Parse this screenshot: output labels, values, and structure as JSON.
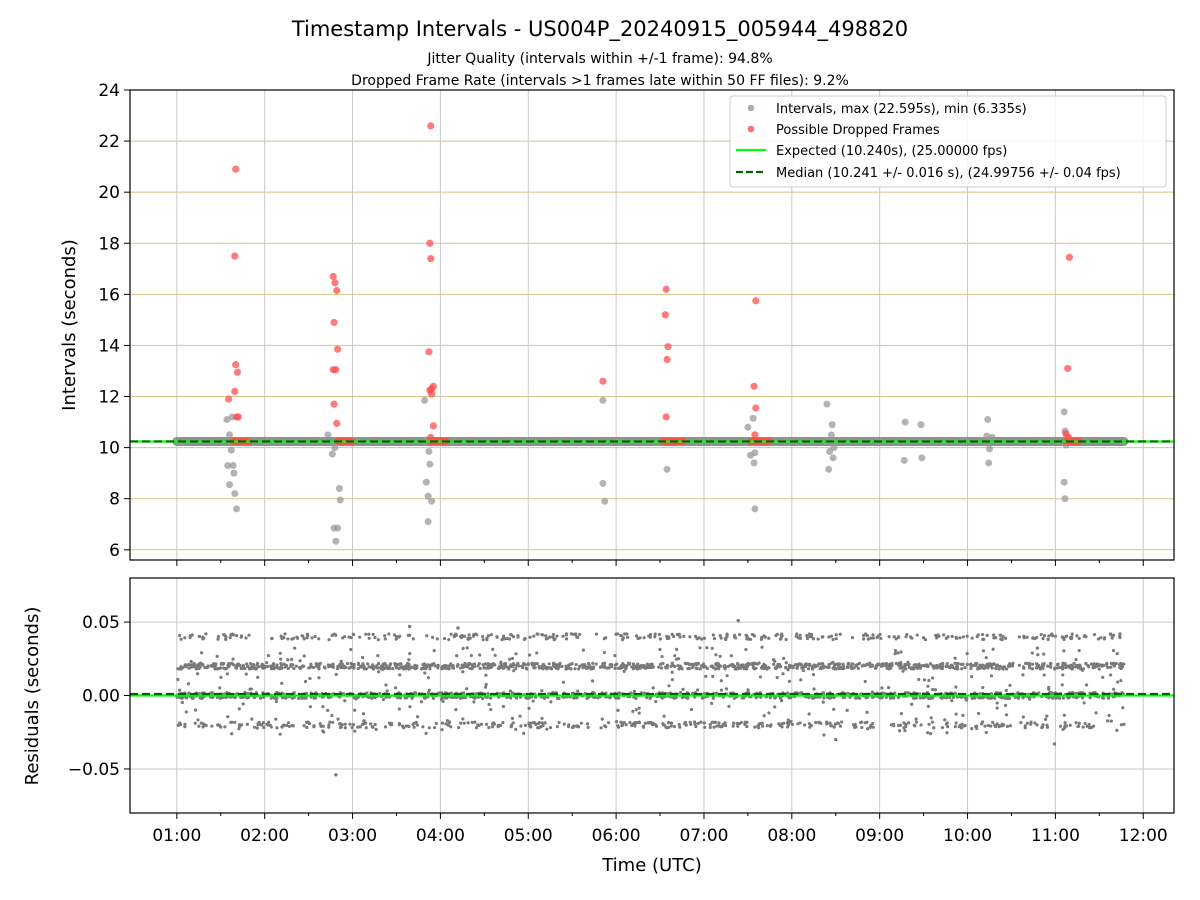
{
  "figure": {
    "title": "Timestamp Intervals - US004P_20240915_005944_498820",
    "subtitle_1": "Jitter Quality (intervals within +/-1 frame): 94.8%",
    "subtitle_2": "Dropped Frame Rate (intervals >1 frames late within 50 FF files): 9.2%"
  },
  "colors": {
    "intervals": "#999999",
    "dropped": "#ff4d4d",
    "expected": "#00ff00",
    "median": "#006400",
    "residuals": "#7a7a7a",
    "hgrid_top": "#d8c486",
    "grid": "#c8c8c8"
  },
  "chart_data": [
    {
      "type": "scatter",
      "ylabel": "Intervals (seconds)",
      "ylim": [
        5.6,
        24
      ],
      "yticks": [
        "6",
        "8",
        "10",
        "12",
        "14",
        "16",
        "18",
        "20",
        "22",
        "24"
      ],
      "xlim_hours": [
        0.467,
        12.35
      ],
      "grid": true,
      "legend_position": "top-right",
      "legend": [
        {
          "label": "Intervals, max (22.595s), min (6.335s)",
          "kind": "marker",
          "color": "#999999"
        },
        {
          "label": "Possible Dropped Frames",
          "kind": "marker",
          "color": "#ff4d4d"
        },
        {
          "label": "Expected (10.240s), (25.00000 fps)",
          "kind": "line",
          "color": "#00ff00"
        },
        {
          "label": "Median (10.241 +/- 0.016 s), (24.99756 +/- 0.04 fps)",
          "kind": "dash",
          "color": "#006400"
        }
      ],
      "expected": 10.24,
      "median": 10.241,
      "baseline_range_hours": [
        1.0,
        11.78
      ],
      "series": [
        {
          "name": "Intervals, max (22.595s), min (6.335s)",
          "points": [
            [
              1.57,
              11.1
            ],
            [
              1.6,
              10.5
            ],
            [
              1.62,
              9.9
            ],
            [
              1.58,
              9.3
            ],
            [
              1.64,
              9.3
            ],
            [
              1.65,
              9.0
            ],
            [
              1.6,
              8.55
            ],
            [
              1.66,
              8.2
            ],
            [
              1.68,
              7.6
            ],
            [
              1.63,
              11.2
            ],
            [
              2.72,
              10.5
            ],
            [
              2.77,
              9.75
            ],
            [
              2.8,
              10.0
            ],
            [
              2.85,
              8.4
            ],
            [
              2.86,
              7.95
            ],
            [
              2.79,
              6.85
            ],
            [
              2.83,
              6.85
            ],
            [
              2.81,
              6.335
            ],
            [
              2.84,
              10.2
            ],
            [
              3.82,
              11.85
            ],
            [
              3.85,
              10.3
            ],
            [
              3.87,
              9.85
            ],
            [
              3.88,
              9.35
            ],
            [
              3.84,
              8.65
            ],
            [
              3.86,
              8.1
            ],
            [
              3.9,
              7.9
            ],
            [
              3.86,
              7.1
            ],
            [
              5.85,
              11.85
            ],
            [
              5.85,
              8.6
            ],
            [
              5.87,
              7.9
            ],
            [
              6.58,
              9.15
            ],
            [
              7.5,
              10.8
            ],
            [
              7.56,
              11.15
            ],
            [
              7.53,
              9.7
            ],
            [
              7.58,
              9.8
            ],
            [
              7.57,
              9.4
            ],
            [
              7.58,
              7.6
            ],
            [
              8.4,
              11.7
            ],
            [
              8.46,
              10.9
            ],
            [
              8.45,
              10.5
            ],
            [
              8.48,
              10.0
            ],
            [
              8.43,
              9.85
            ],
            [
              8.47,
              9.6
            ],
            [
              8.42,
              9.15
            ],
            [
              9.29,
              11.0
            ],
            [
              9.47,
              10.9
            ],
            [
              9.28,
              9.5
            ],
            [
              9.48,
              9.6
            ],
            [
              10.23,
              11.1
            ],
            [
              10.22,
              10.45
            ],
            [
              10.28,
              10.4
            ],
            [
              10.25,
              9.95
            ],
            [
              10.24,
              9.4
            ],
            [
              11.1,
              11.4
            ],
            [
              11.11,
              10.65
            ],
            [
              11.13,
              10.45
            ],
            [
              11.12,
              10.1
            ],
            [
              11.1,
              8.65
            ],
            [
              11.11,
              8.0
            ]
          ]
        },
        {
          "name": "Possible Dropped Frames",
          "points": [
            [
              1.67,
              20.9
            ],
            [
              1.66,
              17.5
            ],
            [
              1.67,
              13.25
            ],
            [
              1.69,
              12.95
            ],
            [
              1.66,
              12.2
            ],
            [
              1.59,
              11.9
            ],
            [
              1.68,
              11.2
            ],
            [
              1.7,
              11.2
            ],
            [
              2.78,
              16.7
            ],
            [
              2.8,
              16.45
            ],
            [
              2.82,
              16.15
            ],
            [
              2.79,
              14.9
            ],
            [
              2.83,
              13.85
            ],
            [
              2.78,
              13.05
            ],
            [
              2.81,
              13.05
            ],
            [
              2.79,
              11.7
            ],
            [
              2.82,
              10.95
            ],
            [
              3.89,
              22.595
            ],
            [
              3.88,
              18.0
            ],
            [
              3.89,
              17.4
            ],
            [
              3.87,
              13.75
            ],
            [
              3.88,
              12.25
            ],
            [
              3.9,
              12.3
            ],
            [
              3.92,
              12.4
            ],
            [
              3.9,
              12.1
            ],
            [
              3.92,
              10.85
            ],
            [
              3.89,
              10.4
            ],
            [
              5.85,
              12.6
            ],
            [
              6.57,
              16.2
            ],
            [
              6.56,
              15.2
            ],
            [
              6.59,
              13.95
            ],
            [
              6.58,
              13.45
            ],
            [
              6.57,
              11.2
            ],
            [
              7.59,
              15.75
            ],
            [
              7.57,
              12.4
            ],
            [
              7.59,
              11.55
            ],
            [
              7.58,
              10.5
            ],
            [
              11.16,
              17.45
            ],
            [
              11.14,
              13.1
            ],
            [
              11.12,
              10.55
            ],
            [
              11.15,
              10.4
            ]
          ],
          "clusters_at_baseline": [
            [
              1.64,
              1.82
            ],
            [
              2.83,
              3.0
            ],
            [
              3.88,
              4.07
            ],
            [
              6.53,
              6.77
            ],
            [
              7.53,
              7.75
            ],
            [
              11.12,
              11.27
            ]
          ]
        }
      ]
    },
    {
      "type": "scatter",
      "ylabel": "Residuals (seconds)",
      "xlabel": "Time (UTC)",
      "ylim": [
        -0.08,
        0.08
      ],
      "yticks": [
        "−0.05",
        "0.00",
        "0.05"
      ],
      "xticks": [
        "01:00",
        "02:00",
        "03:00",
        "04:00",
        "05:00",
        "06:00",
        "07:00",
        "08:00",
        "09:00",
        "10:00",
        "11:00",
        "12:00"
      ],
      "xlim_hours": [
        0.467,
        12.35
      ],
      "grid": true,
      "expected_residual": 0.0,
      "median_residual": 0.001,
      "series": [
        {
          "name": "Residuals",
          "range_hours": [
            1.0,
            11.78
          ],
          "level_values": [
            0.04,
            0.02,
            0.0,
            -0.02
          ],
          "approx_point_count": 3000,
          "outliers": [
            [
              2.81,
              -0.054
            ],
            [
              10.99,
              -0.033
            ],
            [
              7.39,
              0.051
            ],
            [
              4.2,
              0.046
            ],
            [
              3.65,
              0.047
            ],
            [
              8.5,
              -0.03
            ]
          ]
        }
      ]
    }
  ]
}
